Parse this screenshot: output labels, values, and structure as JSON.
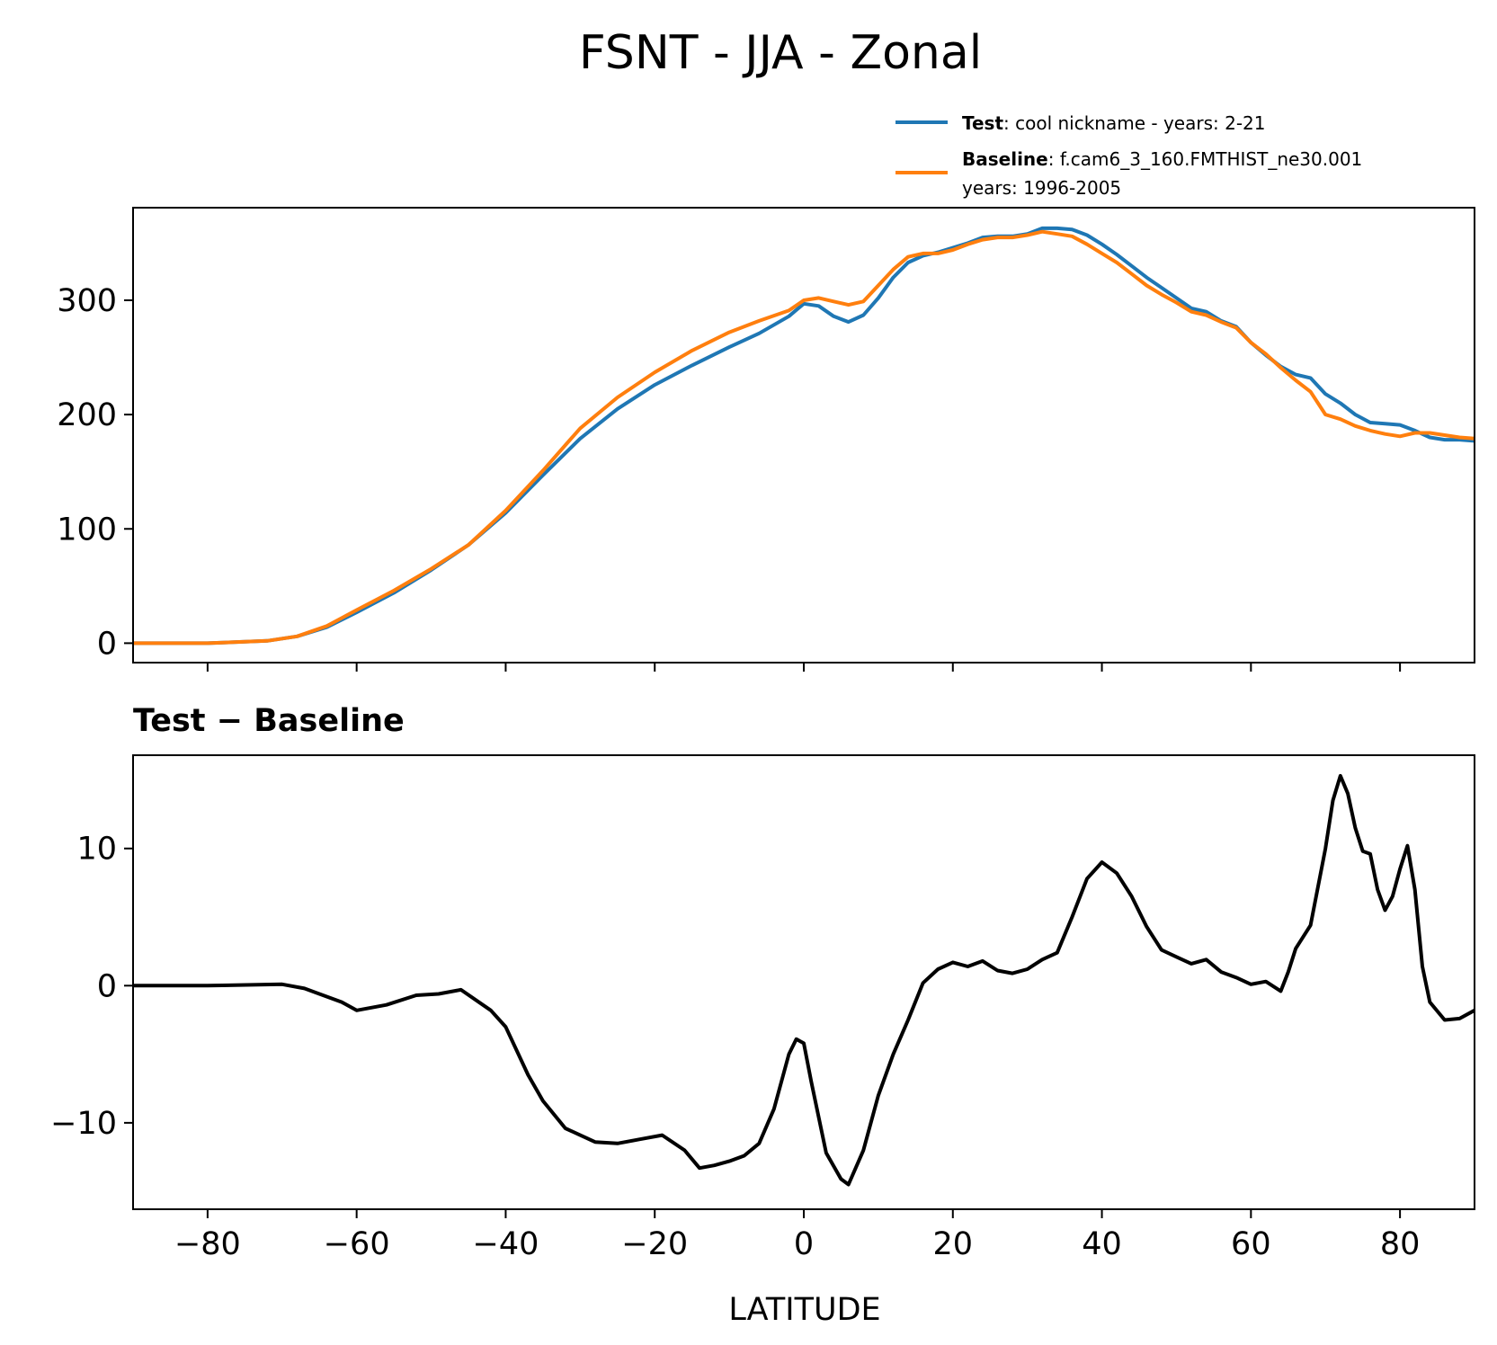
{
  "figure": {
    "title": "FSNT - JJA - Zonal",
    "legend": {
      "test_label": "Test",
      "test_desc": ": cool nickname - years: 2-21",
      "baseline_label": "Baseline",
      "baseline_desc": ": f.cam6_3_160.FMTHIST_ne30.001",
      "baseline_desc2": "years: 1996-2005"
    }
  },
  "chart_data": [
    {
      "type": "line",
      "xlim": [
        -90,
        90
      ],
      "ylim": [
        -17,
        381
      ],
      "yticks": [
        0,
        100,
        200,
        300
      ],
      "xticks": [
        -80,
        -60,
        -40,
        -20,
        0,
        20,
        40,
        60,
        80
      ],
      "tick_labels_x_visible": false,
      "legend_position": "above-right",
      "x": [
        -90,
        -80,
        -72,
        -68,
        -64,
        -60,
        -55,
        -50,
        -45,
        -40,
        -35,
        -30,
        -25,
        -20,
        -15,
        -10,
        -6,
        -2,
        0,
        2,
        4,
        6,
        8,
        10,
        12,
        14,
        16,
        18,
        20,
        22,
        24,
        26,
        28,
        30,
        32,
        34,
        36,
        38,
        40,
        42,
        44,
        46,
        48,
        50,
        52,
        54,
        56,
        58,
        60,
        62,
        64,
        66,
        68,
        70,
        72,
        74,
        76,
        78,
        80,
        82,
        84,
        86,
        88,
        90
      ],
      "series": [
        {
          "name": "Test",
          "color": "#1f77b4",
          "values": [
            0,
            0,
            2,
            6,
            14,
            27,
            44,
            64,
            86,
            114,
            147,
            179,
            205,
            226,
            243,
            259,
            271,
            286,
            297,
            295,
            286,
            281,
            287,
            302,
            320,
            333,
            339,
            342,
            346,
            350,
            355,
            356,
            356,
            358,
            363,
            363,
            362,
            357,
            349,
            340,
            330,
            320,
            311,
            302,
            293,
            290,
            282,
            277,
            263,
            252,
            242,
            235,
            232,
            218,
            210,
            200,
            193,
            192,
            191,
            186,
            180,
            178,
            178,
            177
          ]
        },
        {
          "name": "Baseline",
          "color": "#ff7f0e",
          "values": [
            0,
            0,
            2,
            6,
            15,
            29,
            46,
            65,
            86,
            116,
            151,
            188,
            215,
            237,
            256,
            272,
            282,
            291,
            300,
            302,
            299,
            296,
            299,
            313,
            327,
            338,
            341,
            341,
            344,
            349,
            353,
            355,
            355,
            357,
            360,
            358,
            356,
            349,
            341,
            333,
            323,
            313,
            305,
            298,
            290,
            287,
            281,
            276,
            263,
            253,
            241,
            230,
            220,
            200,
            196,
            190,
            186,
            183,
            181,
            184,
            184,
            182,
            180,
            179
          ]
        }
      ]
    },
    {
      "type": "line",
      "title": "Test − Baseline",
      "xlabel": "LATITUDE",
      "xlim": [
        -90,
        90
      ],
      "ylim": [
        -16.3,
        16.8
      ],
      "yticks": [
        -10,
        0,
        10
      ],
      "xticks": [
        -80,
        -60,
        -40,
        -20,
        0,
        20,
        40,
        60,
        80
      ],
      "x": [
        -90,
        -80,
        -70,
        -67,
        -65,
        -62,
        -60,
        -56,
        -52,
        -49,
        -46,
        -42,
        -40,
        -37,
        -35,
        -32,
        -28,
        -25,
        -22,
        -19,
        -16,
        -14,
        -12,
        -10,
        -8,
        -6,
        -4,
        -2,
        -1,
        0,
        1,
        3,
        5,
        6,
        8,
        10,
        12,
        14,
        16,
        18,
        20,
        22,
        24,
        26,
        28,
        30,
        32,
        34,
        36,
        38,
        40,
        42,
        44,
        46,
        48,
        50,
        52,
        54,
        56,
        58,
        60,
        62,
        64,
        65,
        66,
        68,
        70,
        71,
        72,
        73,
        74,
        75,
        76,
        77,
        78,
        79,
        80,
        81,
        82,
        83,
        84,
        86,
        88,
        90
      ],
      "values": [
        0,
        0,
        0.1,
        -0.2,
        -0.6,
        -1.2,
        -1.8,
        -1.4,
        -0.7,
        -0.6,
        -0.3,
        -1.8,
        -3,
        -6.5,
        -8.4,
        -10.4,
        -11.4,
        -11.5,
        -11.2,
        -10.9,
        -12,
        -13.3,
        -13.1,
        -12.8,
        -12.4,
        -11.5,
        -9,
        -5,
        -3.9,
        -4.2,
        -7,
        -12.2,
        -14.1,
        -14.5,
        -12,
        -8,
        -5,
        -2.5,
        0.2,
        1.2,
        1.7,
        1.4,
        1.8,
        1.1,
        0.9,
        1.2,
        1.9,
        2.4,
        5,
        7.8,
        9,
        8.2,
        6.5,
        4.3,
        2.6,
        2.1,
        1.6,
        1.9,
        1,
        0.6,
        0.1,
        0.3,
        -0.4,
        1,
        2.7,
        4.4,
        10,
        13.5,
        15.3,
        14,
        11.5,
        9.8,
        9.6,
        7,
        5.5,
        6.5,
        8.5,
        10.2,
        7,
        1.4,
        -1.2,
        -2.5,
        -2.4,
        -1.8
      ],
      "color": "#000000"
    }
  ]
}
